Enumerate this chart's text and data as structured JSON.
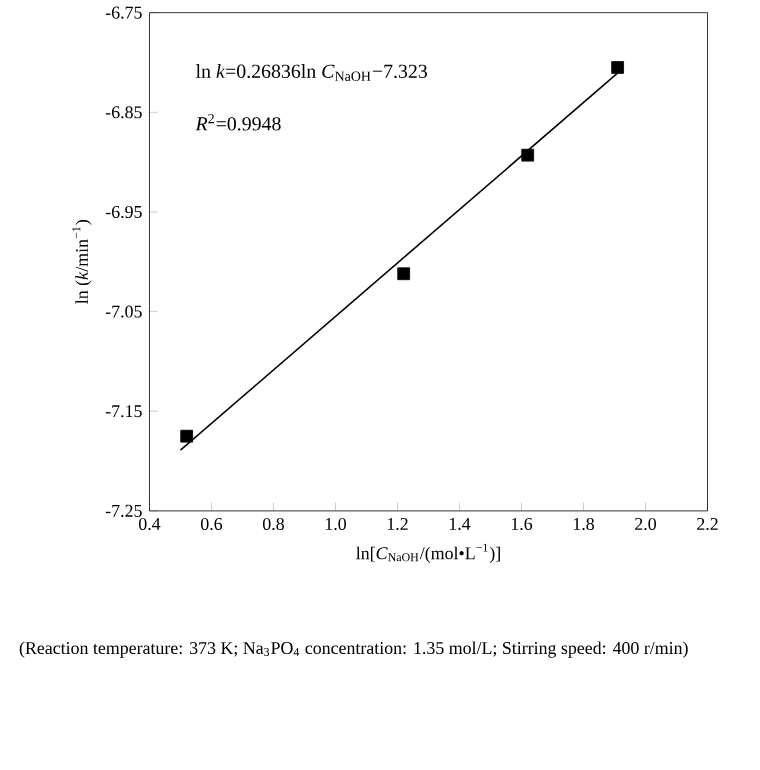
{
  "chart_data": {
    "type": "scatter",
    "xlabel": "ln[*C*$_{NaOH}$/(mol•L$^{−1}$)]",
    "ylabel": "ln (*k*/min$^{−1}$)",
    "xlim": [
      0.4,
      2.2
    ],
    "xticks": [
      0.4,
      0.6,
      0.8,
      {
        "value": 1.0,
        "label": "1.0"
      },
      1.2,
      1.4,
      1.6,
      1.8,
      {
        "value": 2.0,
        "label": "2.0"
      },
      2.2
    ],
    "ylim": [
      -7.25,
      -6.75
    ],
    "yticks": [
      -7.25,
      -7.15,
      -7.05,
      -6.95,
      -6.85,
      -6.75
    ],
    "series": [
      {
        "color": "#000000",
        "marker": "square",
        "x": [
          0.52,
          1.22,
          1.62,
          1.91
        ],
        "values": [
          -7.175,
          -7.012,
          -6.893,
          -6.805
        ]
      },
      {
        "type": "line",
        "color": "#000000",
        "marker": "none",
        "line_style": "solid",
        "x": [
          0.5,
          1.92
        ],
        "values": [
          -7.189,
          -6.808
        ]
      }
    ],
    "annotations": [
      "ln *k*=0.26836ln *C*$_{NaOH}$−7.323",
      "*R*$^{2}$=0.9948",
      "(Reaction temperature: 373 K; Na$_{3}$PO$_{4}$ concentration: 1.35 mol/L; Stirring speed: 400 r/min)"
    ]
  }
}
